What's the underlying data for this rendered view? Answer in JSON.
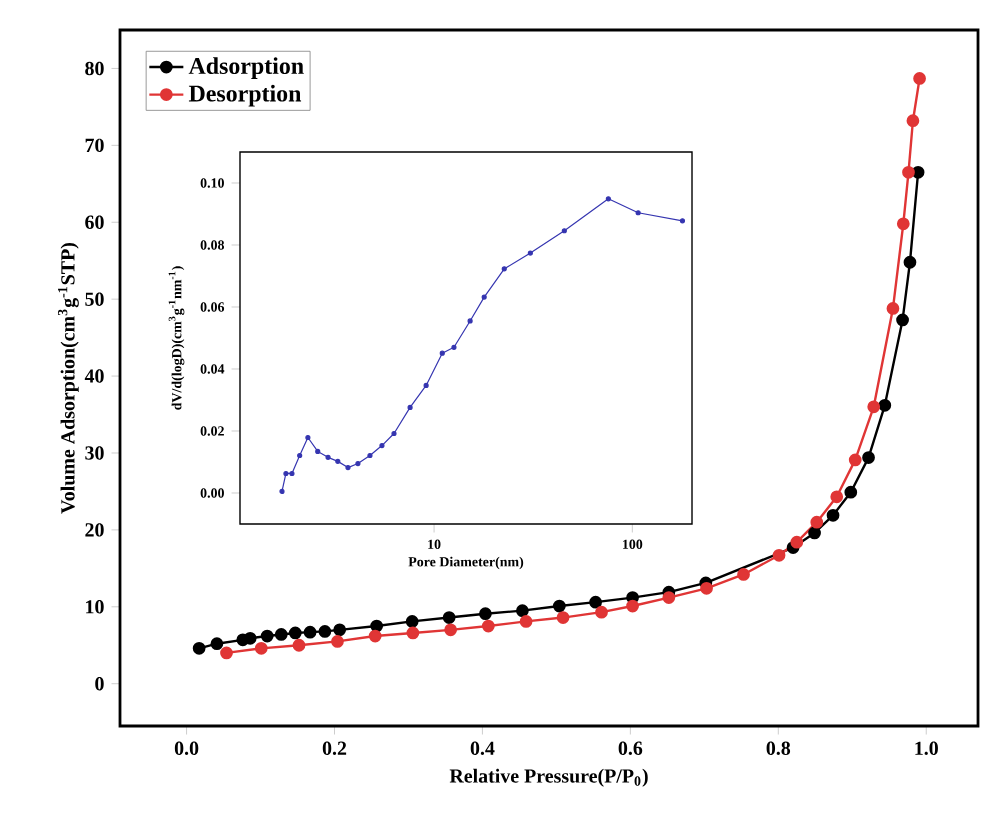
{
  "chart_data": [
    {
      "type": "line",
      "xlabel": "Relative Pressure(P/P$_{0}$)",
      "ylabel": "Volume Adsorption(cm$^{3}$g$^{-1}$STP)",
      "xlim": [
        -0.09,
        1.07
      ],
      "ylim": [
        -5.5,
        85
      ],
      "xticks": [
        {
          "value": 0,
          "label": "0.0"
        },
        {
          "value": 0.2,
          "label": "0.2"
        },
        {
          "value": 0.4,
          "label": "0.4"
        },
        {
          "value": 0.6,
          "label": "0.6"
        },
        {
          "value": 0.8,
          "label": "0.8"
        },
        {
          "value": 1.0,
          "label": "1.0"
        }
      ],
      "yticks": [
        0,
        10,
        20,
        30,
        40,
        50,
        60,
        70,
        80
      ],
      "grid": false,
      "legend": "top left",
      "marker": "circle",
      "line_style": "solid",
      "series": [
        {
          "name": "Adsorption",
          "color": "#000000",
          "x": [
            0.017,
            0.041,
            0.076,
            0.086,
            0.109,
            0.128,
            0.147,
            0.167,
            0.187,
            0.207,
            0.257,
            0.305,
            0.355,
            0.404,
            0.454,
            0.504,
            0.553,
            0.603,
            0.652,
            0.702,
            0.751,
            0.801,
            0.82,
            0.849,
            0.874,
            0.898,
            0.922,
            0.944,
            0.968,
            0.978,
            0.989
          ],
          "values": [
            4.6,
            5.2,
            5.7,
            5.9,
            6.2,
            6.4,
            6.6,
            6.7,
            6.8,
            7.0,
            7.5,
            8.1,
            8.6,
            9.1,
            9.5,
            10.1,
            10.6,
            11.2,
            11.9,
            13.1,
            null,
            null,
            17.7,
            19.6,
            21.9,
            24.9,
            29.4,
            36.2,
            47.3,
            54.8,
            66.5
          ]
        },
        {
          "name": "Desorption",
          "color": "#e03535",
          "x": [
            0.054,
            0.101,
            0.152,
            0.204,
            0.255,
            0.306,
            0.357,
            0.408,
            0.459,
            0.509,
            0.561,
            0.603,
            0.652,
            0.703,
            0.753,
            0.801,
            0.825,
            0.852,
            0.879,
            0.904,
            0.929,
            0.955,
            0.969,
            0.976,
            0.982,
            0.991
          ],
          "values": [
            4.0,
            4.6,
            5.0,
            5.5,
            6.2,
            6.6,
            7.0,
            7.5,
            8.1,
            8.6,
            9.3,
            10.1,
            11.2,
            12.4,
            14.2,
            16.7,
            18.4,
            21.0,
            24.3,
            29.1,
            36.0,
            48.8,
            59.8,
            66.5,
            73.2,
            78.7
          ]
        }
      ]
    },
    {
      "type": "line",
      "xlabel": "Pore Diameter(nm)",
      "ylabel": "dV/d(logD)(cm$^{3}$g$^{-1}$nm$^{-1}$)",
      "log": "x",
      "xlim": [
        1.05,
        200
      ],
      "ylim": [
        -0.01,
        0.11
      ],
      "xticks": [
        10,
        100
      ],
      "yticks": [
        {
          "value": 0,
          "label": "0.00"
        },
        {
          "value": 0.02,
          "label": "0.02"
        },
        {
          "value": 0.04,
          "label": "0.04"
        },
        {
          "value": 0.06,
          "label": "0.06"
        },
        {
          "value": 0.08,
          "label": "0.08"
        },
        {
          "value": 0.1,
          "label": "0.10"
        }
      ],
      "grid": false,
      "legend": false,
      "marker": "circle",
      "line_style": "solid",
      "series": [
        {
          "color": "#3535b0",
          "x": [
            1.71,
            1.79,
            1.92,
            2.1,
            2.31,
            2.59,
            2.92,
            3.27,
            3.68,
            4.13,
            4.75,
            5.46,
            6.28,
            7.57,
            9.12,
            11.0,
            12.6,
            15.2,
            17.9,
            22.6,
            30.6,
            45.4,
            75.7,
            107,
            179
          ],
          "values": [
            0.0005,
            0.0063,
            0.0063,
            0.0121,
            0.0179,
            0.0134,
            0.0115,
            0.0102,
            0.0082,
            0.0095,
            0.0121,
            0.0153,
            0.0192,
            0.0276,
            0.0347,
            0.0451,
            0.047,
            0.0555,
            0.0632,
            0.0723,
            0.0774,
            0.0846,
            0.0949,
            0.0904,
            0.0878
          ]
        }
      ]
    }
  ]
}
